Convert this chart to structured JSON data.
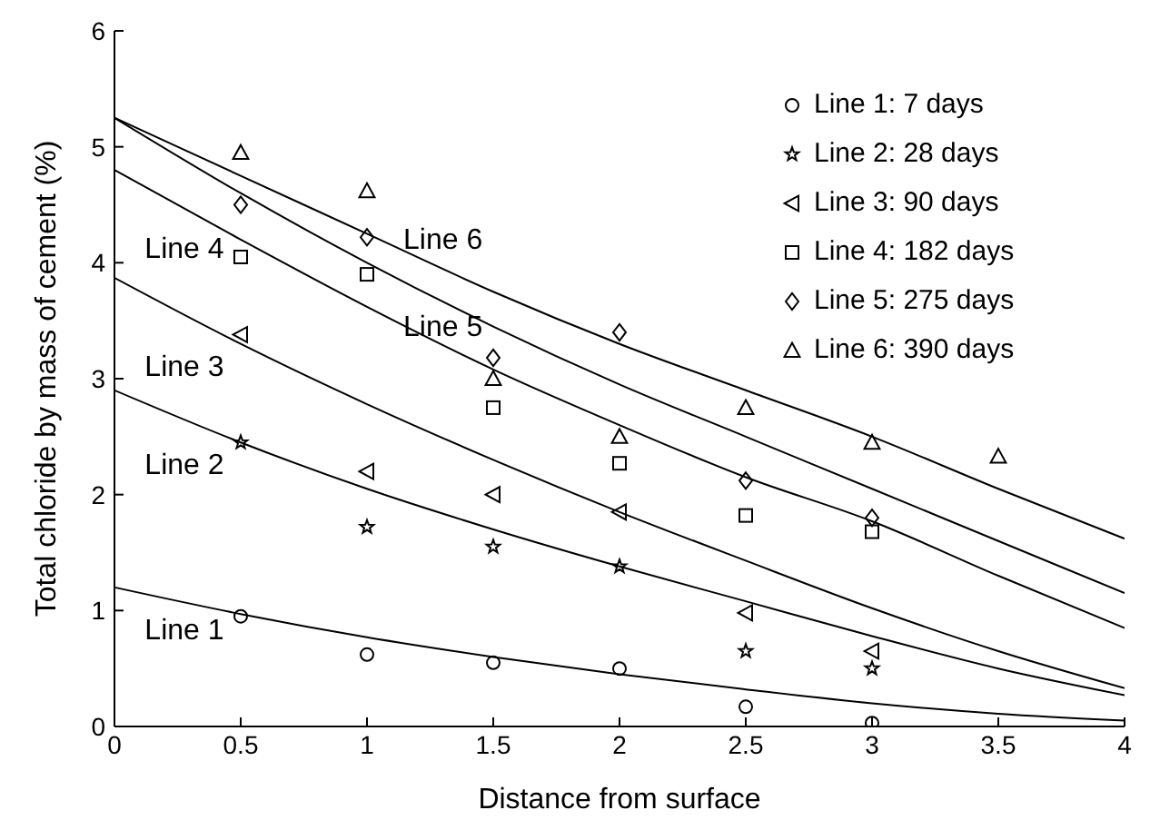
{
  "chart_data": {
    "type": "scatter",
    "xlabel": "Distance from surface",
    "ylabel": "Total chloride by mass of cement (%)",
    "xlim": [
      0,
      4
    ],
    "xticks": [
      0,
      0.5,
      1,
      1.5,
      2,
      2.5,
      3,
      3.5,
      4
    ],
    "ylim": [
      0,
      6
    ],
    "yticks": [
      0,
      1,
      2,
      3,
      4,
      5,
      6
    ],
    "grid": false,
    "legend": "top right",
    "series": [
      {
        "name": "Line 1: 7 days",
        "color": "#000000",
        "marker": "circle",
        "x": [
          0.5,
          1,
          1.5,
          2,
          2.5,
          3
        ],
        "values": [
          0.95,
          0.62,
          0.55,
          0.5,
          0.17,
          0.03
        ]
      },
      {
        "name": "Line 2: 28 days",
        "color": "#000000",
        "marker": "star",
        "x": [
          0.5,
          1,
          1.5,
          2,
          2.5,
          3
        ],
        "values": [
          2.45,
          1.72,
          1.55,
          1.38,
          0.65,
          0.5
        ]
      },
      {
        "name": "Line 3: 90 days",
        "color": "#000000",
        "marker": "triangle-left",
        "x": [
          0.5,
          1,
          1.5,
          2,
          2.5,
          3
        ],
        "values": [
          3.38,
          2.2,
          2.0,
          1.85,
          0.98,
          0.65
        ]
      },
      {
        "name": "Line 4: 182 days",
        "color": "#000000",
        "marker": "square",
        "x": [
          0.5,
          1,
          1.5,
          2,
          2.5,
          3
        ],
        "values": [
          4.05,
          3.9,
          2.75,
          2.27,
          1.82,
          1.68
        ]
      },
      {
        "name": "Line 5: 275 days",
        "color": "#000000",
        "marker": "diamond",
        "x": [
          0.5,
          1,
          1.5,
          2,
          2.5,
          3
        ],
        "values": [
          4.5,
          4.22,
          3.18,
          3.4,
          2.12,
          1.8
        ]
      },
      {
        "name": "Line 6: 390 days",
        "color": "#000000",
        "marker": "triangle",
        "x": [
          0.5,
          1,
          1.5,
          2,
          2.5,
          3,
          3.5
        ],
        "values": [
          4.95,
          4.62,
          3.0,
          2.5,
          2.75,
          2.45,
          2.33
        ]
      },
      {
        "type": "line",
        "color": "#000000",
        "marker": "none",
        "x": [
          0,
          0.5,
          1,
          1.5,
          2,
          2.5,
          3,
          3.5,
          4
        ],
        "values": [
          1.2,
          0.97,
          0.77,
          0.6,
          0.45,
          0.32,
          0.2,
          0.11,
          0.05
        ]
      },
      {
        "type": "line",
        "color": "#000000",
        "marker": "none",
        "x": [
          0,
          0.5,
          1,
          1.5,
          2,
          2.5,
          3,
          3.5,
          4
        ],
        "values": [
          2.9,
          2.45,
          2.05,
          1.7,
          1.38,
          1.08,
          0.78,
          0.5,
          0.27
        ]
      },
      {
        "type": "line",
        "color": "#000000",
        "marker": "none",
        "x": [
          0,
          0.5,
          1,
          1.5,
          2,
          2.5,
          3,
          3.5,
          4
        ],
        "values": [
          3.87,
          3.3,
          2.78,
          2.3,
          1.85,
          1.43,
          1.02,
          0.65,
          0.33
        ]
      },
      {
        "type": "line",
        "color": "#000000",
        "marker": "none",
        "x": [
          0,
          0.5,
          1,
          1.5,
          2,
          2.5,
          3,
          3.5,
          4
        ],
        "values": [
          4.8,
          4.2,
          3.62,
          3.08,
          2.6,
          2.15,
          1.77,
          1.3,
          0.85
        ]
      },
      {
        "type": "line",
        "color": "#000000",
        "marker": "none",
        "x": [
          0,
          0.5,
          1,
          1.5,
          2,
          2.5,
          3,
          3.5,
          4
        ],
        "values": [
          5.25,
          4.6,
          4.0,
          3.45,
          2.95,
          2.5,
          2.05,
          1.6,
          1.15
        ]
      },
      {
        "type": "line",
        "color": "#000000",
        "marker": "none",
        "x": [
          0,
          0.5,
          1,
          1.5,
          2,
          2.5,
          3,
          3.5,
          4
        ],
        "values": [
          5.25,
          4.75,
          4.25,
          3.75,
          3.3,
          2.9,
          2.5,
          2.05,
          1.62
        ]
      }
    ],
    "annotations": [
      "Line 1",
      "Line 2",
      "Line 3",
      "Line 4",
      "Line 5",
      "Line 6"
    ]
  }
}
